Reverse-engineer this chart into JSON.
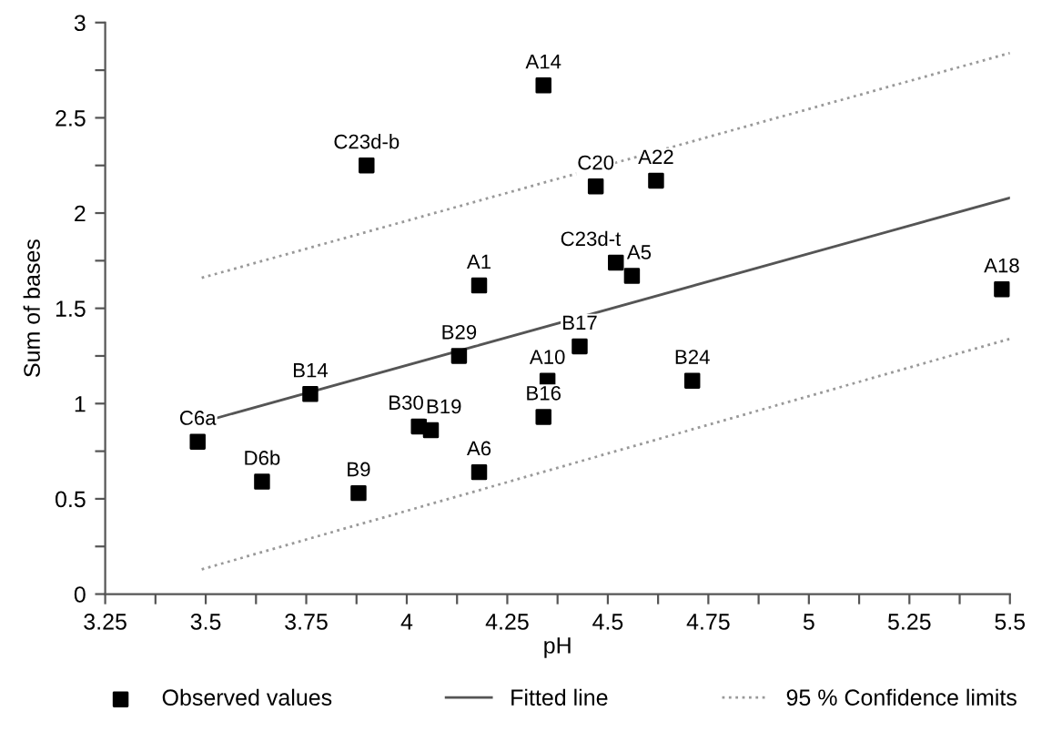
{
  "chart_data": {
    "type": "scatter",
    "xlabel": "pH",
    "ylabel": "Sum of bases",
    "xlim": [
      3.25,
      5.5
    ],
    "ylim": [
      0,
      3
    ],
    "xticks": [
      {
        "value": 3.25,
        "label": "3.25"
      },
      {
        "value": 3.375,
        "label": null
      },
      {
        "value": 3.5,
        "label": "3.5"
      },
      {
        "value": 3.625,
        "label": null
      },
      {
        "value": 3.75,
        "label": "3.75"
      },
      {
        "value": 3.875,
        "label": null
      },
      4,
      {
        "value": 4.125,
        "label": null
      },
      {
        "value": 4.25,
        "label": "4.25"
      },
      {
        "value": 4.375,
        "label": null
      },
      {
        "value": 4.5,
        "label": "4.5"
      },
      {
        "value": 4.625,
        "label": null
      },
      {
        "value": 4.75,
        "label": "4.75"
      },
      {
        "value": 4.875,
        "label": null
      },
      5,
      {
        "value": 5.125,
        "label": null
      },
      {
        "value": 5.25,
        "label": "5.25"
      },
      {
        "value": 5.375,
        "label": null
      },
      {
        "value": 5.5,
        "label": "5.5"
      }
    ],
    "yticks": [
      0,
      {
        "value": 0.25,
        "label": null
      },
      0.5,
      {
        "value": 0.75,
        "label": null
      },
      1,
      {
        "value": 1.25,
        "label": null
      },
      1.5,
      {
        "value": 1.75,
        "label": null
      },
      2,
      {
        "value": 2.25,
        "label": null
      },
      2.5,
      {
        "value": 2.75,
        "label": null
      },
      3
    ],
    "grid": false,
    "legend": "bottom",
    "series": [
      {
        "name": "Observed values",
        "marker": "square",
        "color": "#000000",
        "x": [
          3.48,
          3.64,
          3.88,
          3.76,
          3.9,
          4.03,
          4.06,
          4.18,
          4.13,
          4.18,
          4.34,
          4.35,
          4.34,
          4.43,
          4.47,
          4.62,
          4.52,
          4.56,
          4.71,
          5.48
        ],
        "values": [
          0.8,
          0.59,
          0.53,
          1.05,
          2.25,
          0.88,
          0.86,
          0.64,
          1.25,
          1.62,
          2.67,
          1.12,
          0.93,
          1.3,
          2.14,
          2.17,
          1.74,
          1.67,
          1.12,
          1.6
        ]
      },
      {
        "name": "Fitted line",
        "type": "line",
        "line_style": "solid",
        "marker": "none",
        "color": "#555555",
        "x": [
          3.52,
          5.5
        ],
        "values": [
          0.92,
          2.08
        ]
      },
      {
        "name": "95 % Confidence limits",
        "type": "line",
        "line_style": "dotted",
        "marker": "none",
        "color": "#999999",
        "x": [
          3.49,
          5.5
        ],
        "values": [
          1.66,
          2.84
        ]
      },
      {
        "type": "line",
        "line_style": "dotted",
        "marker": "none",
        "color": "#999999",
        "x": [
          3.49,
          5.5
        ],
        "values": [
          0.13,
          1.34
        ]
      }
    ],
    "annotations": [
      {
        "text": "C6a",
        "x": 3.48,
        "y": 0.8
      },
      {
        "text": "D6b",
        "x": 3.64,
        "y": 0.59
      },
      {
        "text": "B9",
        "x": 3.88,
        "y": 0.53
      },
      {
        "text": "B14",
        "x": 3.76,
        "y": 1.05
      },
      {
        "text": "C23d-b",
        "x": 3.9,
        "y": 2.25
      },
      {
        "text": "B30",
        "x": 4.03,
        "y": 0.88
      },
      {
        "text": "B19",
        "x": 4.06,
        "y": 0.86
      },
      {
        "text": "A6",
        "x": 4.18,
        "y": 0.64
      },
      {
        "text": "B29",
        "x": 4.13,
        "y": 1.25
      },
      {
        "text": "A1",
        "x": 4.18,
        "y": 1.62
      },
      {
        "text": "A14",
        "x": 4.34,
        "y": 2.67
      },
      {
        "text": "A10",
        "x": 4.35,
        "y": 1.12
      },
      {
        "text": "B16",
        "x": 4.34,
        "y": 0.93
      },
      {
        "text": "B17",
        "x": 4.43,
        "y": 1.3
      },
      {
        "text": "C20",
        "x": 4.47,
        "y": 2.14
      },
      {
        "text": "A22",
        "x": 4.62,
        "y": 2.17
      },
      {
        "text": "C23d-t",
        "x": 4.52,
        "y": 1.74
      },
      {
        "text": "A5",
        "x": 4.56,
        "y": 1.67
      },
      {
        "text": "B24",
        "x": 4.71,
        "y": 1.12
      },
      {
        "text": "A18",
        "x": 5.48,
        "y": 1.6
      }
    ]
  }
}
